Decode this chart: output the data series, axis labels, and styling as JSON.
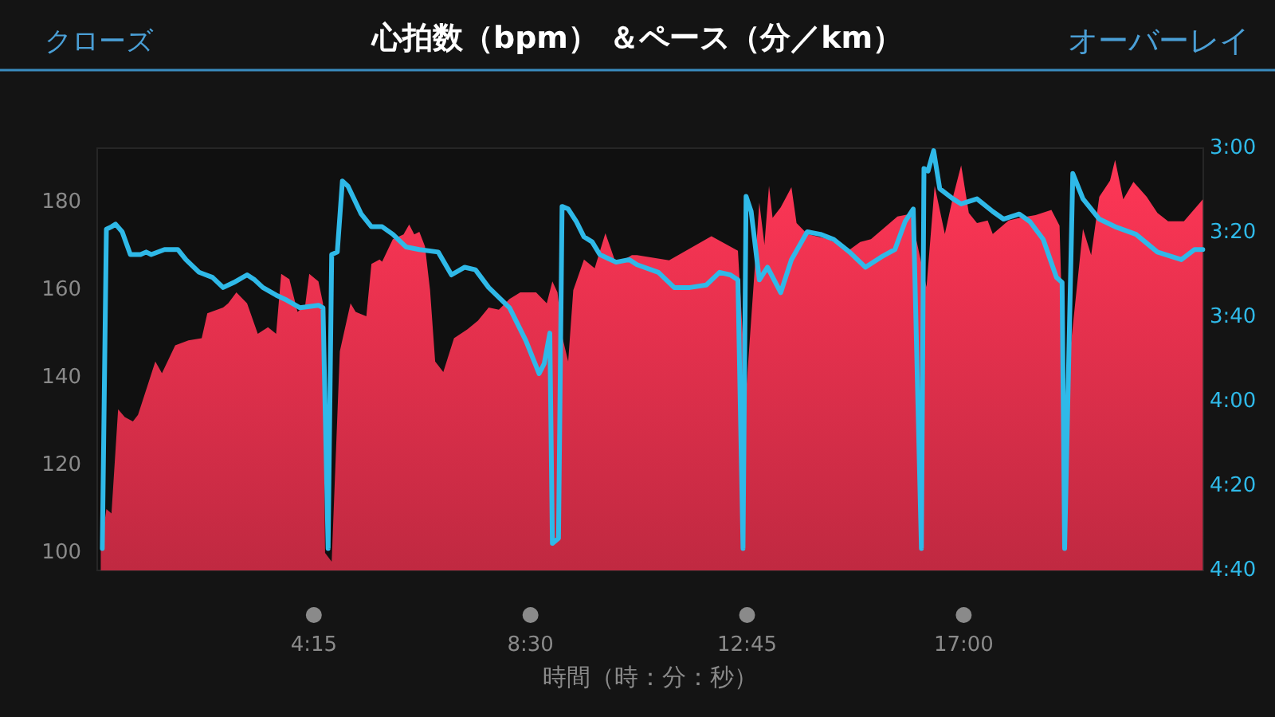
{
  "chart_data": {
    "type": "area",
    "title": "心拍数（bpm） ＆ペース（分／km）",
    "xlabel": "時間（時：分：秒）",
    "annotations": [
      "クローズ",
      "オーバーレイ"
    ],
    "xlim": [
      0,
      21.7
    ],
    "xticks": [
      {
        "value": 4.25,
        "label": "4:15"
      },
      {
        "value": 8.5,
        "label": "8:30"
      },
      {
        "value": 12.75,
        "label": "12:45"
      },
      {
        "value": 17,
        "label": "17:00"
      }
    ],
    "ylim": [
      96,
      192.4
    ],
    "yticks": [
      100,
      120,
      140,
      160,
      180
    ],
    "y2lim": [
      4.6667,
      3
    ],
    "y2ticks": [
      {
        "value": 3,
        "label": "3:00"
      },
      {
        "value": 3.3333,
        "label": "3:20"
      },
      {
        "value": 3.6667,
        "label": "3:40"
      },
      {
        "value": 4,
        "label": "4:00"
      },
      {
        "value": 4.3333,
        "label": "4:20"
      },
      {
        "value": 4.6667,
        "label": "4:40"
      }
    ],
    "grid": false,
    "series": [
      {
        "color": "#e2304c",
        "x": [
          0.07,
          0.18,
          0.28,
          0.41,
          0.54,
          0.7,
          0.8,
          1.01,
          1.14,
          1.27,
          1.53,
          1.79,
          2.05,
          2.16,
          2.47,
          2.57,
          2.73,
          2.94,
          3.15,
          3.35,
          3.51,
          3.61,
          3.77,
          3.93,
          4.08,
          4.16,
          4.34,
          4.43,
          4.47,
          4.6,
          4.76,
          4.97,
          5.07,
          5.28,
          5.38,
          5.54,
          5.59,
          5.8,
          6.01,
          6.12,
          6.22,
          6.32,
          6.43,
          6.53,
          6.63,
          6.79,
          7,
          7.26,
          7.47,
          7.68,
          7.88,
          8.09,
          8.3,
          8.61,
          8.82,
          8.93,
          9.03,
          9.13,
          9.24,
          9.34,
          9.55,
          9.76,
          9.97,
          10.18,
          10.49,
          10.59,
          11.22,
          12.05,
          12.57,
          12.73,
          12.99,
          13.09,
          13.18,
          13.25,
          13.41,
          13.62,
          13.72,
          13.93,
          14.34,
          14.76,
          14.97,
          15.18,
          15.49,
          15.7,
          15.96,
          16.27,
          16.43,
          16.63,
          16.79,
          16.95,
          17.1,
          17.26,
          17.47,
          17.57,
          17.88,
          18.09,
          18.41,
          18.72,
          18.88,
          18.98,
          19.34,
          19.5,
          19.66,
          19.87,
          19.97,
          20.13,
          20.33,
          20.59,
          20.8,
          21.01,
          21.32,
          21.69
        ],
        "values": [
          101,
          110,
          109,
          132.8,
          131,
          130,
          131.5,
          139,
          143.7,
          141,
          147.4,
          148.5,
          149,
          154.7,
          156,
          157,
          159.5,
          157,
          150,
          151.5,
          150,
          163.7,
          162.5,
          155,
          156.5,
          163.7,
          162,
          157,
          100,
          98,
          146,
          157,
          155,
          154,
          166,
          167,
          166.5,
          171.6,
          172.7,
          175,
          172.7,
          173.3,
          170,
          160,
          143.7,
          141.3,
          149,
          151,
          153,
          156,
          155.5,
          158,
          159.5,
          159.5,
          157,
          162,
          159.5,
          149,
          143.7,
          160,
          167,
          165,
          173,
          166,
          168,
          168,
          166.8,
          172.3,
          169,
          136.5,
          180,
          170.4,
          183.8,
          176.5,
          178.9,
          183.5,
          175.3,
          172.8,
          171.6,
          169.2,
          171,
          171.6,
          174.7,
          176.8,
          177.4,
          160.7,
          183.8,
          172.8,
          181.3,
          188.5,
          177.6,
          175.3,
          175.9,
          172.8,
          175.9,
          176.5,
          177.1,
          178.3,
          174.7,
          134,
          174,
          168,
          181.3,
          185,
          189.7,
          180.7,
          184.7,
          181.3,
          177.6,
          175.7,
          175.7,
          180.7
        ]
      },
      {
        "type": "line",
        "axis": "y2",
        "color": "#2fb9e8",
        "x": [
          0.1,
          0.18,
          0.28,
          0.36,
          0.49,
          0.65,
          0.85,
          0.96,
          1.06,
          1.32,
          1.58,
          1.74,
          2,
          2.26,
          2.47,
          2.68,
          2.94,
          3.09,
          3.25,
          3.51,
          3.72,
          3.98,
          4.34,
          4.43,
          4.53,
          4.6,
          4.71,
          4.81,
          4.92,
          5.18,
          5.38,
          5.59,
          5.8,
          6.06,
          6.32,
          6.69,
          6.95,
          7.21,
          7.42,
          7.68,
          8.09,
          8.41,
          8.67,
          8.77,
          8.88,
          8.93,
          9.05,
          9.12,
          9.24,
          9.4,
          9.55,
          9.71,
          9.86,
          10.18,
          10.44,
          10.59,
          11.01,
          11.32,
          11.63,
          11.95,
          12.21,
          12.42,
          12.57,
          12.67,
          12.73,
          12.83,
          12.99,
          13.15,
          13.41,
          13.62,
          13.93,
          14.19,
          14.45,
          14.76,
          15.07,
          15.38,
          15.65,
          15.85,
          16.01,
          16.17,
          16.22,
          16.3,
          16.41,
          16.53,
          16.79,
          16.95,
          17.26,
          17.57,
          17.78,
          18.09,
          18.3,
          18.56,
          18.82,
          18.93,
          18.98,
          19.14,
          19.34,
          19.66,
          19.97,
          20.38,
          20.8,
          21.27,
          21.53,
          21.69
        ],
        "values": [
          4.58,
          3.32,
          3.31,
          3.3,
          3.33,
          3.42,
          3.42,
          3.41,
          3.42,
          3.4,
          3.4,
          3.44,
          3.49,
          3.51,
          3.55,
          3.53,
          3.5,
          3.52,
          3.55,
          3.58,
          3.6,
          3.63,
          3.62,
          3.63,
          4.58,
          3.42,
          3.41,
          3.13,
          3.15,
          3.26,
          3.31,
          3.31,
          3.34,
          3.39,
          3.4,
          3.41,
          3.5,
          3.47,
          3.48,
          3.55,
          3.63,
          3.76,
          3.89,
          3.85,
          3.73,
          4.56,
          4.54,
          3.23,
          3.24,
          3.29,
          3.35,
          3.37,
          3.42,
          3.45,
          3.44,
          3.46,
          3.49,
          3.55,
          3.55,
          3.54,
          3.49,
          3.5,
          3.52,
          4.58,
          3.19,
          3.25,
          3.52,
          3.47,
          3.57,
          3.44,
          3.33,
          3.34,
          3.36,
          3.41,
          3.47,
          3.43,
          3.4,
          3.29,
          3.24,
          4.58,
          3.08,
          3.09,
          3.01,
          3.16,
          3.2,
          3.22,
          3.2,
          3.25,
          3.28,
          3.26,
          3.29,
          3.36,
          3.51,
          3.53,
          4.58,
          3.1,
          3.2,
          3.28,
          3.31,
          3.34,
          3.41,
          3.44,
          3.4,
          3.4
        ]
      }
    ]
  }
}
